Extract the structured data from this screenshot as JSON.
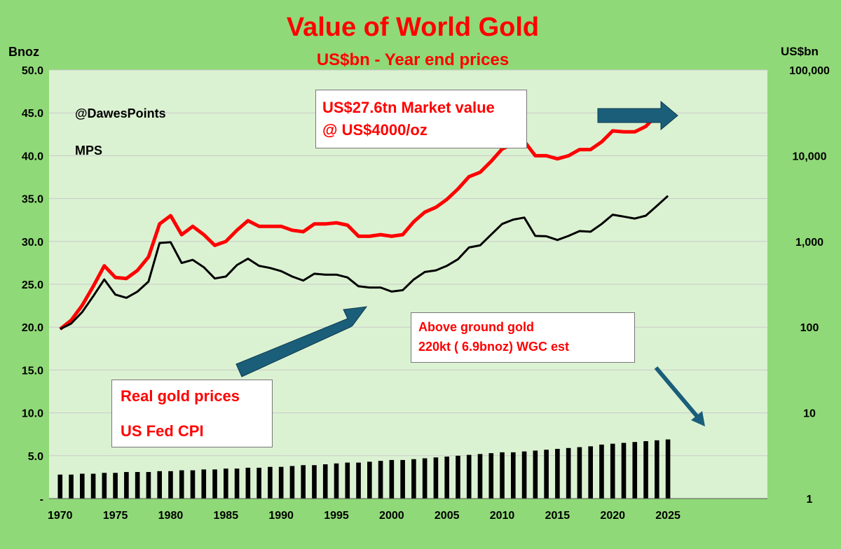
{
  "chart_data": {
    "type": "bar+line",
    "title": "Value of World Gold",
    "subtitle": "US$bn - Year end prices",
    "ylabel_left": "Bnoz",
    "ylabel_right": "US$bn",
    "y_left_range": [
      0,
      50
    ],
    "y_left_ticks": [
      "-",
      "5.0",
      "10.0",
      "15.0",
      "20.0",
      "25.0",
      "30.0",
      "35.0",
      "40.0",
      "45.0",
      "50.0"
    ],
    "y_right_scale": "log",
    "y_right_range": [
      1,
      100000
    ],
    "y_right_ticks": [
      "1",
      "10",
      "100",
      "1,000",
      "10,000",
      "100,000"
    ],
    "x_range": [
      1969,
      2034
    ],
    "x_ticks": [
      "1970",
      "1975",
      "1980",
      "1985",
      "1990",
      "1995",
      "2000",
      "2005",
      "2010",
      "2015",
      "2020",
      "2025"
    ],
    "grid": true,
    "x": [
      1970,
      1971,
      1972,
      1973,
      1974,
      1975,
      1976,
      1977,
      1978,
      1979,
      1980,
      1981,
      1982,
      1983,
      1984,
      1985,
      1986,
      1987,
      1988,
      1989,
      1990,
      1991,
      1992,
      1993,
      1994,
      1995,
      1996,
      1997,
      1998,
      1999,
      2000,
      2001,
      2002,
      2003,
      2004,
      2005,
      2006,
      2007,
      2008,
      2009,
      2010,
      2011,
      2012,
      2013,
      2014,
      2015,
      2016,
      2017,
      2018,
      2019,
      2020,
      2021,
      2022,
      2023,
      2024,
      2025
    ],
    "series": [
      {
        "name": "Above ground gold (Bnoz)",
        "axis": "left",
        "type": "bar",
        "color": "#000000",
        "values": [
          2.8,
          2.8,
          2.9,
          2.9,
          3.0,
          3.0,
          3.1,
          3.1,
          3.1,
          3.2,
          3.2,
          3.3,
          3.3,
          3.4,
          3.4,
          3.5,
          3.5,
          3.6,
          3.6,
          3.7,
          3.7,
          3.8,
          3.9,
          3.9,
          4.0,
          4.1,
          4.2,
          4.2,
          4.3,
          4.4,
          4.5,
          4.5,
          4.6,
          4.7,
          4.8,
          4.9,
          5.0,
          5.1,
          5.2,
          5.3,
          5.4,
          5.4,
          5.5,
          5.6,
          5.7,
          5.8,
          5.9,
          6.0,
          6.1,
          6.3,
          6.4,
          6.5,
          6.6,
          6.7,
          6.8,
          6.9
        ]
      },
      {
        "name": "Market value (US$bn)",
        "axis": "right",
        "type": "line",
        "color": "#ff0000",
        "values": [
          95,
          120,
          180,
          300,
          520,
          380,
          370,
          460,
          660,
          1600,
          2000,
          1200,
          1500,
          1200,
          900,
          1000,
          1350,
          1750,
          1500,
          1500,
          1500,
          1350,
          1300,
          1600,
          1600,
          1650,
          1550,
          1150,
          1150,
          1200,
          1150,
          1200,
          1700,
          2200,
          2500,
          3100,
          4100,
          5700,
          6400,
          8600,
          12000,
          13700,
          14800,
          10000,
          10000,
          9200,
          10000,
          11800,
          11800,
          14500,
          19500,
          19000,
          19000,
          22000,
          30000,
          27600
        ]
      },
      {
        "name": "Real gold prices US Fed CPI (US$bn)",
        "axis": "right",
        "type": "line",
        "color": "#000000",
        "values": [
          95,
          110,
          150,
          230,
          360,
          240,
          220,
          260,
          340,
          960,
          980,
          560,
          610,
          500,
          370,
          390,
          530,
          630,
          520,
          490,
          450,
          390,
          350,
          420,
          410,
          410,
          380,
          300,
          290,
          290,
          260,
          270,
          360,
          440,
          460,
          520,
          620,
          850,
          900,
          1200,
          1600,
          1800,
          1900,
          1160,
          1150,
          1040,
          1160,
          1320,
          1300,
          1600,
          2050,
          1950,
          1850,
          2000,
          2600,
          3400
        ]
      }
    ],
    "annotations": {
      "handle": "@DawesPoints",
      "author": "MPS",
      "market_value_line1": "US$27.6tn Market value",
      "market_value_line2": "@ US$4000/oz",
      "above_ground_line1": "Above ground gold",
      "above_ground_line2": "220kt ( 6.9bnoz) WGC est",
      "real_prices_line1": "Real gold prices",
      "real_prices_line2": "US Fed CPI"
    },
    "colors": {
      "background": "#90d978",
      "plot_area": "#dbf2d2",
      "title": "#ff0000",
      "arrow": "#1a5e7a"
    }
  }
}
